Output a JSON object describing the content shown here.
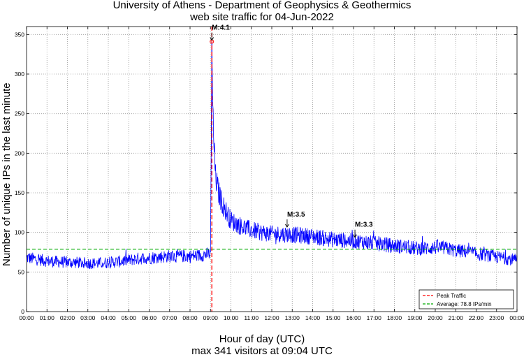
{
  "header": {
    "title_line1": "University of Athens - Department of Geophysics & Geothermics",
    "title_line2": "web site traffic for 04-Jun-2022"
  },
  "footer": {
    "xlabel": "Hour of day (UTC)",
    "summary": "max 341 visitors at 09:04 UTC"
  },
  "colors": {
    "series": "#0000ff",
    "peak_line": "#ff0000",
    "average_line": "#00aa00",
    "grid": "#9a9a9a"
  },
  "chart_data": {
    "type": "line",
    "title": "University of Athens - Department of Geophysics & Geothermics",
    "subtitle": "web site traffic for 04-Jun-2022",
    "xlabel": "Hour of day (UTC)",
    "ylabel": "Number of unique IPs in the last minute",
    "x_unit": "hour of day",
    "xlim": [
      0,
      24
    ],
    "ylim": [
      0,
      360
    ],
    "xticks": [
      "00:00",
      "01:00",
      "02:00",
      "03:00",
      "04:00",
      "05:00",
      "06:00",
      "07:00",
      "08:00",
      "09:00",
      "10:00",
      "11:00",
      "12:00",
      "13:00",
      "14:00",
      "15:00",
      "16:00",
      "17:00",
      "18:00",
      "19:00",
      "20:00",
      "21:00",
      "22:00",
      "23:00",
      "00:00"
    ],
    "yticks": [
      0,
      50,
      100,
      150,
      200,
      250,
      300,
      350
    ],
    "grid": true,
    "legend_position": "bottom-right",
    "legend": [
      {
        "label": "Peak Traffic",
        "style": "dashed",
        "color": "#ff0000"
      },
      {
        "label": "Average: 78.8 IPs/min",
        "style": "dashed",
        "color": "#00aa00"
      }
    ],
    "series": [
      {
        "color": "#0000ff",
        "x": [
          0,
          0.5,
          1,
          1.5,
          2,
          2.5,
          3,
          3.5,
          4,
          4.5,
          5,
          5.5,
          6,
          6.5,
          7,
          7.5,
          8,
          8.5,
          9,
          9.05,
          9.0667,
          9.1,
          9.15,
          9.25,
          9.4,
          9.6,
          9.8,
          10,
          10.5,
          11,
          11.5,
          12,
          12.5,
          13,
          13.5,
          14,
          14.5,
          15,
          15.5,
          16,
          16.5,
          17,
          17.5,
          18,
          18.5,
          19,
          19.5,
          20,
          20.5,
          21,
          21.5,
          22,
          22.5,
          23,
          23.5,
          24
        ],
        "y": [
          68,
          66,
          64,
          63,
          62,
          62,
          61,
          61,
          62,
          63,
          65,
          67,
          68,
          69,
          70,
          70,
          70,
          71,
          73,
          260,
          341,
          280,
          220,
          170,
          150,
          135,
          125,
          115,
          108,
          103,
          100,
          98,
          98,
          97,
          96,
          95,
          93,
          91,
          90,
          89,
          88,
          86,
          85,
          83,
          82,
          80,
          80,
          81,
          80,
          77,
          76,
          73,
          71,
          69,
          67,
          65
        ]
      }
    ],
    "peak": {
      "x": 9.0667,
      "y": 341
    },
    "average": 78.8,
    "annotations": [
      {
        "text": "M:4.1",
        "x": 9.0667,
        "y": 341
      },
      {
        "text": "M:3.5",
        "x": 12.75,
        "y": 105
      },
      {
        "text": "M:3.3",
        "x": 16.07,
        "y": 92
      }
    ]
  }
}
